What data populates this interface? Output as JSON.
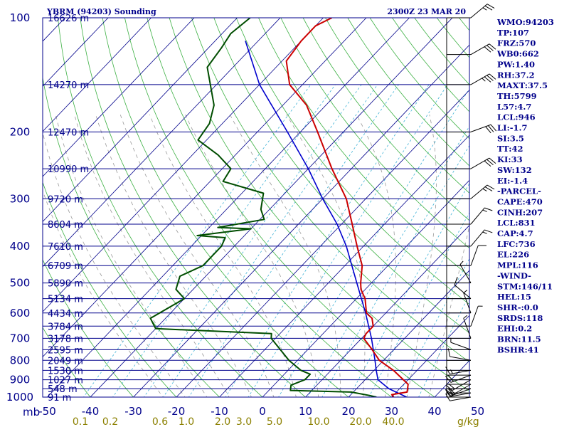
{
  "header": {
    "station": "YBRM (94203) Sounding",
    "time": "2300Z 23 MAR 20"
  },
  "colors": {
    "frame": "#00008b",
    "isotherm": "#00008b",
    "dry_adiabat": "#3cb043",
    "mixing_ratio": "#3fb2d6",
    "moist_adiabat": "#9a9a9a",
    "temperature": "#cc0000",
    "dewpoint": "#004d00",
    "parcel": "#0000cd",
    "wind": "#000000"
  },
  "chart_data": {
    "type": "skew-t",
    "title": "YBRM (94203) Sounding",
    "xlabel": "°C",
    "pressure_axis_unit": "mb",
    "pressure_ticks": [
      100,
      200,
      300,
      400,
      500,
      600,
      700,
      800,
      900,
      1000
    ],
    "temp_ticks": [
      -50,
      -40,
      -30,
      -20,
      -10,
      0,
      10,
      20,
      30,
      40,
      50
    ],
    "temp_labels": [
      "-50",
      "-40",
      "-30",
      "-20",
      "-10",
      "0",
      "10",
      "20",
      "30",
      "40",
      "50"
    ],
    "mixing_ratio_unit": "g/kg",
    "mixing_ratio_labels": [
      "0.1",
      "0.2",
      "0.6",
      "1.0",
      "2.0",
      "3.0",
      "5.0",
      "10.0",
      "20.0",
      "40.0"
    ],
    "mixing_ratio_values": [
      0.1,
      0.2,
      0.6,
      1.0,
      2.0,
      3.0,
      5.0,
      10.0,
      20.0,
      40.0
    ],
    "height_levels": [
      {
        "p": 100,
        "label": "16626 m"
      },
      {
        "p": 150,
        "label": "14270 m"
      },
      {
        "p": 200,
        "label": "12470 m"
      },
      {
        "p": 250,
        "label": "10990 m"
      },
      {
        "p": 300,
        "label": "9720 m"
      },
      {
        "p": 350,
        "label": "8604 m"
      },
      {
        "p": 400,
        "label": "7610 m"
      },
      {
        "p": 450,
        "label": "6709 m"
      },
      {
        "p": 500,
        "label": "5890 m"
      },
      {
        "p": 550,
        "label": "5134 m"
      },
      {
        "p": 600,
        "label": "4434 m"
      },
      {
        "p": 650,
        "label": "3784 m"
      },
      {
        "p": 700,
        "label": "3178 m"
      },
      {
        "p": 750,
        "label": "2595 m"
      },
      {
        "p": 800,
        "label": "2049 m"
      },
      {
        "p": 850,
        "label": "1530 m"
      },
      {
        "p": 900,
        "label": "1027 m"
      },
      {
        "p": 950,
        "label": "548 m"
      },
      {
        "p": 1000,
        "label": "91 m"
      }
    ],
    "temperature": [
      {
        "p": 1000,
        "t": 30.5
      },
      {
        "p": 985,
        "t": 29.5
      },
      {
        "p": 970,
        "t": 32.5
      },
      {
        "p": 925,
        "t": 31
      },
      {
        "p": 850,
        "t": 24.5
      },
      {
        "p": 800,
        "t": 19
      },
      {
        "p": 750,
        "t": 15
      },
      {
        "p": 700,
        "t": 10.5
      },
      {
        "p": 680,
        "t": 10
      },
      {
        "p": 650,
        "t": 10
      },
      {
        "p": 620,
        "t": 8
      },
      {
        "p": 600,
        "t": 5.5
      },
      {
        "p": 550,
        "t": 2
      },
      {
        "p": 520,
        "t": -1
      },
      {
        "p": 500,
        "t": -2.5
      },
      {
        "p": 450,
        "t": -6
      },
      {
        "p": 400,
        "t": -11.5
      },
      {
        "p": 350,
        "t": -17.5
      },
      {
        "p": 300,
        "t": -24.5
      },
      {
        "p": 250,
        "t": -34.5
      },
      {
        "p": 200,
        "t": -46
      },
      {
        "p": 170,
        "t": -54.5
      },
      {
        "p": 150,
        "t": -63
      },
      {
        "p": 130,
        "t": -69
      },
      {
        "p": 115,
        "t": -70
      },
      {
        "p": 105,
        "t": -70
      },
      {
        "p": 100,
        "t": -68
      }
    ],
    "dewpoint": [
      {
        "p": 1000,
        "t": 26.5
      },
      {
        "p": 990,
        "t": 24.5
      },
      {
        "p": 970,
        "t": 19.5
      },
      {
        "p": 960,
        "t": 5
      },
      {
        "p": 930,
        "t": 4
      },
      {
        "p": 900,
        "t": 6
      },
      {
        "p": 870,
        "t": 6
      },
      {
        "p": 850,
        "t": 3
      },
      {
        "p": 800,
        "t": -2
      },
      {
        "p": 700,
        "t": -11
      },
      {
        "p": 680,
        "t": -12
      },
      {
        "p": 660,
        "t": -40
      },
      {
        "p": 620,
        "t": -43.5
      },
      {
        "p": 550,
        "t": -40
      },
      {
        "p": 520,
        "t": -44
      },
      {
        "p": 480,
        "t": -46
      },
      {
        "p": 450,
        "t": -43
      },
      {
        "p": 400,
        "t": -43
      },
      {
        "p": 380,
        "t": -44
      },
      {
        "p": 375,
        "t": -51
      },
      {
        "p": 360,
        "t": -40
      },
      {
        "p": 357,
        "t": -48
      },
      {
        "p": 340,
        "t": -39
      },
      {
        "p": 320,
        "t": -42
      },
      {
        "p": 290,
        "t": -45
      },
      {
        "p": 270,
        "t": -57
      },
      {
        "p": 250,
        "t": -58
      },
      {
        "p": 230,
        "t": -64
      },
      {
        "p": 210,
        "t": -72
      },
      {
        "p": 190,
        "t": -73
      },
      {
        "p": 170,
        "t": -76
      },
      {
        "p": 155,
        "t": -80
      },
      {
        "p": 135,
        "t": -86
      },
      {
        "p": 120,
        "t": -87
      },
      {
        "p": 110,
        "t": -88
      },
      {
        "p": 100,
        "t": -87
      }
    ],
    "parcel": [
      {
        "p": 1000,
        "t": 33.5
      },
      {
        "p": 950,
        "t": 27.5
      },
      {
        "p": 900,
        "t": 23
      },
      {
        "p": 850,
        "t": 20.5
      },
      {
        "p": 800,
        "t": 18
      },
      {
        "p": 700,
        "t": 12.3
      },
      {
        "p": 600,
        "t": 5.3
      },
      {
        "p": 500,
        "t": -3.4
      },
      {
        "p": 400,
        "t": -14
      },
      {
        "p": 350,
        "t": -21
      },
      {
        "p": 300,
        "t": -30
      },
      {
        "p": 250,
        "t": -40
      },
      {
        "p": 200,
        "t": -53
      },
      {
        "p": 150,
        "t": -70
      },
      {
        "p": 115,
        "t": -83
      }
    ],
    "wind_barbs": [
      {
        "p": 1000,
        "dir": 80,
        "spd": 10
      },
      {
        "p": 975,
        "dir": 80,
        "spd": 15
      },
      {
        "p": 950,
        "dir": 70,
        "spd": 20
      },
      {
        "p": 925,
        "dir": 60,
        "spd": 20
      },
      {
        "p": 900,
        "dir": 60,
        "spd": 20
      },
      {
        "p": 875,
        "dir": 70,
        "spd": 20
      },
      {
        "p": 850,
        "dir": 80,
        "spd": 15
      },
      {
        "p": 800,
        "dir": 100,
        "spd": 10
      },
      {
        "p": 750,
        "dir": 110,
        "spd": 5
      },
      {
        "p": 700,
        "dir": 160,
        "spd": 5
      },
      {
        "p": 650,
        "dir": 200,
        "spd": 5
      },
      {
        "p": 600,
        "dir": 160,
        "spd": 5
      },
      {
        "p": 550,
        "dir": 130,
        "spd": 10
      },
      {
        "p": 500,
        "dir": 150,
        "spd": 5
      },
      {
        "p": 450,
        "dir": 200,
        "spd": 10
      },
      {
        "p": 400,
        "dir": 220,
        "spd": 15
      },
      {
        "p": 350,
        "dir": 220,
        "spd": 15
      },
      {
        "p": 300,
        "dir": 230,
        "spd": 25
      },
      {
        "p": 250,
        "dir": 240,
        "spd": 30
      },
      {
        "p": 200,
        "dir": 250,
        "spd": 30
      },
      {
        "p": 150,
        "dir": 240,
        "spd": 35
      },
      {
        "p": 125,
        "dir": 240,
        "spd": 30
      },
      {
        "p": 100,
        "dir": 230,
        "spd": 25
      }
    ]
  },
  "indices": [
    "WMO:94203",
    "TP:107",
    "FRZ:570",
    "WB0:662",
    "PW:1.40",
    "RH:37.2",
    "MAXT:37.5",
    "TH:5799",
    "L57:4.7",
    "LCL:946",
    "LI:-1.7",
    "SI:3.5",
    "TT:42",
    "KI:33",
    "SW:132",
    "EI:-1.4",
    "-PARCEL-",
    "CAPE:470",
    "CINH:207",
    "LCL:831",
    "CAP:4.7",
    "LFC:736",
    "EL:226",
    "MPL:116",
    "-WIND-",
    "STM:146/11",
    "HEL:15",
    "SHR-:0.0",
    "SRDS:118",
    "EHI:0.2",
    "BRN:11.5",
    "BSHR:41"
  ]
}
